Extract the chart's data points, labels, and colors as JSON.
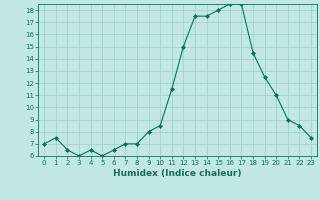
{
  "x": [
    0,
    1,
    2,
    3,
    4,
    5,
    6,
    7,
    8,
    9,
    10,
    11,
    12,
    13,
    14,
    15,
    16,
    17,
    18,
    19,
    20,
    21,
    22,
    23
  ],
  "y": [
    7.0,
    7.5,
    6.5,
    6.0,
    6.5,
    6.0,
    6.5,
    7.0,
    7.0,
    8.0,
    8.5,
    11.5,
    15.0,
    17.5,
    17.5,
    18.0,
    18.5,
    18.5,
    14.5,
    12.5,
    11.0,
    9.0,
    8.5,
    7.5
  ],
  "xlabel": "Humidex (Indice chaleur)",
  "ylim": [
    6,
    18.5
  ],
  "yticks": [
    6,
    7,
    8,
    9,
    10,
    11,
    12,
    13,
    14,
    15,
    16,
    17,
    18
  ],
  "xticks": [
    0,
    1,
    2,
    3,
    4,
    5,
    6,
    7,
    8,
    9,
    10,
    11,
    12,
    13,
    14,
    15,
    16,
    17,
    18,
    19,
    20,
    21,
    22,
    23
  ],
  "line_color": "#1a6b5e",
  "marker_color": "#1a6b5e",
  "bg_color": "#c0e8e4",
  "grid_color": "#9dcfca",
  "label_color": "#1a6b5e",
  "tick_color": "#1a6b5e"
}
